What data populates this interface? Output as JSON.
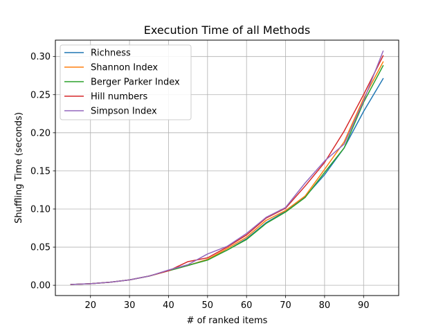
{
  "chart_data": {
    "type": "line",
    "title": "Execution Time of all Methods",
    "xlabel": "# of ranked items",
    "ylabel": "Shuffling Time (seconds)",
    "xlim": [
      11,
      99
    ],
    "ylim": [
      -0.0135,
      0.3215
    ],
    "xticks": [
      20,
      30,
      40,
      50,
      60,
      70,
      80,
      90
    ],
    "xtick_labels": [
      "20",
      "30",
      "40",
      "50",
      "60",
      "70",
      "80",
      "90"
    ],
    "yticks": [
      0.0,
      0.05,
      0.1,
      0.15,
      0.2,
      0.25,
      0.3
    ],
    "ytick_labels": [
      "0.00",
      "0.05",
      "0.10",
      "0.15",
      "0.20",
      "0.25",
      "0.30"
    ],
    "grid": true,
    "legend_position": "upper-left",
    "x": [
      15,
      20,
      25,
      30,
      35,
      40,
      45,
      50,
      55,
      60,
      65,
      70,
      75,
      80,
      85,
      90,
      95
    ],
    "series": [
      {
        "name": "Richness",
        "color": "#1f77b4",
        "values": [
          0.001,
          0.002,
          0.004,
          0.007,
          0.012,
          0.019,
          0.026,
          0.034,
          0.046,
          0.061,
          0.082,
          0.097,
          0.116,
          0.145,
          0.18,
          0.228,
          0.271
        ]
      },
      {
        "name": "Shannon Index",
        "color": "#ff7f0e",
        "values": [
          0.001,
          0.002,
          0.004,
          0.007,
          0.012,
          0.019,
          0.026,
          0.034,
          0.048,
          0.063,
          0.085,
          0.098,
          0.117,
          0.152,
          0.188,
          0.245,
          0.293
        ]
      },
      {
        "name": "Berger Parker Index",
        "color": "#2ca02c",
        "values": [
          0.001,
          0.002,
          0.004,
          0.007,
          0.012,
          0.019,
          0.026,
          0.033,
          0.046,
          0.06,
          0.081,
          0.096,
          0.115,
          0.148,
          0.18,
          0.24,
          0.288
        ]
      },
      {
        "name": "Hill numbers",
        "color": "#d62728",
        "values": [
          0.001,
          0.002,
          0.004,
          0.007,
          0.012,
          0.019,
          0.031,
          0.036,
          0.05,
          0.066,
          0.088,
          0.101,
          0.13,
          0.161,
          0.202,
          0.25,
          0.301
        ]
      },
      {
        "name": "Simpson Index",
        "color": "#9467bd",
        "values": [
          0.001,
          0.002,
          0.004,
          0.007,
          0.012,
          0.02,
          0.027,
          0.041,
          0.051,
          0.068,
          0.089,
          0.102,
          0.134,
          0.163,
          0.185,
          0.242,
          0.307
        ]
      }
    ]
  }
}
